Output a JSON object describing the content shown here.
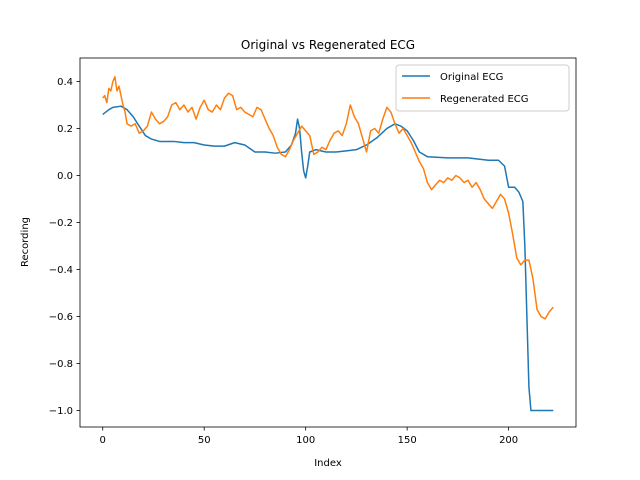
{
  "chart_data": {
    "type": "line",
    "title": "Original vs Regenerated ECG",
    "xlabel": "Index",
    "ylabel": "Recording",
    "xlim": [
      -11.2,
      233.2
    ],
    "ylim": [
      -1.07,
      0.5
    ],
    "x_ticks": [
      0,
      50,
      100,
      150,
      200
    ],
    "y_ticks": [
      -1.0,
      -0.8,
      -0.6,
      -0.4,
      -0.2,
      0.0,
      0.2,
      0.4
    ],
    "y_tick_labels": [
      "−1.0",
      "−0.8",
      "−0.6",
      "−0.4",
      "−0.2",
      "0.0",
      "0.2",
      "0.4"
    ],
    "grid": false,
    "legend_position": "top-right",
    "series": [
      {
        "name": "Original ECG",
        "color": "#1f77b4",
        "points": [
          [
            0,
            0.26
          ],
          [
            3,
            0.28
          ],
          [
            5,
            0.29
          ],
          [
            9,
            0.295
          ],
          [
            12,
            0.28
          ],
          [
            15,
            0.25
          ],
          [
            18,
            0.21
          ],
          [
            21,
            0.17
          ],
          [
            24,
            0.155
          ],
          [
            28,
            0.145
          ],
          [
            35,
            0.145
          ],
          [
            40,
            0.14
          ],
          [
            45,
            0.14
          ],
          [
            50,
            0.13
          ],
          [
            55,
            0.125
          ],
          [
            60,
            0.125
          ],
          [
            65,
            0.14
          ],
          [
            70,
            0.13
          ],
          [
            75,
            0.1
          ],
          [
            80,
            0.1
          ],
          [
            85,
            0.095
          ],
          [
            90,
            0.1
          ],
          [
            93,
            0.13
          ],
          [
            95,
            0.18
          ],
          [
            96,
            0.24
          ],
          [
            97,
            0.2
          ],
          [
            98,
            0.1
          ],
          [
            99,
            0.02
          ],
          [
            100,
            -0.01
          ],
          [
            101,
            0.04
          ],
          [
            102,
            0.1
          ],
          [
            105,
            0.11
          ],
          [
            110,
            0.1
          ],
          [
            115,
            0.1
          ],
          [
            120,
            0.105
          ],
          [
            125,
            0.11
          ],
          [
            130,
            0.13
          ],
          [
            135,
            0.16
          ],
          [
            140,
            0.2
          ],
          [
            144,
            0.22
          ],
          [
            147,
            0.21
          ],
          [
            150,
            0.19
          ],
          [
            153,
            0.15
          ],
          [
            156,
            0.1
          ],
          [
            160,
            0.08
          ],
          [
            170,
            0.075
          ],
          [
            180,
            0.075
          ],
          [
            190,
            0.065
          ],
          [
            195,
            0.065
          ],
          [
            198,
            0.04
          ],
          [
            200,
            -0.05
          ],
          [
            203,
            -0.05
          ],
          [
            205,
            -0.07
          ],
          [
            207,
            -0.11
          ],
          [
            208,
            -0.3
          ],
          [
            209,
            -0.6
          ],
          [
            210,
            -0.9
          ],
          [
            211,
            -1.0
          ],
          [
            215,
            -1.0
          ],
          [
            222,
            -1.0
          ]
        ]
      },
      {
        "name": "Regenerated ECG",
        "color": "#ff7f0e",
        "points": [
          [
            0,
            0.33
          ],
          [
            1,
            0.34
          ],
          [
            2,
            0.31
          ],
          [
            3,
            0.37
          ],
          [
            4,
            0.36
          ],
          [
            5,
            0.4
          ],
          [
            6,
            0.42
          ],
          [
            7,
            0.36
          ],
          [
            8,
            0.38
          ],
          [
            9,
            0.34
          ],
          [
            10,
            0.3
          ],
          [
            11,
            0.27
          ],
          [
            12,
            0.22
          ],
          [
            14,
            0.21
          ],
          [
            16,
            0.22
          ],
          [
            18,
            0.18
          ],
          [
            20,
            0.19
          ],
          [
            22,
            0.21
          ],
          [
            24,
            0.27
          ],
          [
            26,
            0.24
          ],
          [
            28,
            0.22
          ],
          [
            30,
            0.23
          ],
          [
            32,
            0.25
          ],
          [
            34,
            0.3
          ],
          [
            36,
            0.31
          ],
          [
            38,
            0.28
          ],
          [
            40,
            0.3
          ],
          [
            42,
            0.27
          ],
          [
            44,
            0.29
          ],
          [
            46,
            0.24
          ],
          [
            48,
            0.29
          ],
          [
            50,
            0.32
          ],
          [
            52,
            0.28
          ],
          [
            54,
            0.27
          ],
          [
            56,
            0.3
          ],
          [
            58,
            0.28
          ],
          [
            60,
            0.33
          ],
          [
            62,
            0.35
          ],
          [
            64,
            0.34
          ],
          [
            66,
            0.28
          ],
          [
            68,
            0.29
          ],
          [
            70,
            0.27
          ],
          [
            72,
            0.26
          ],
          [
            74,
            0.25
          ],
          [
            76,
            0.29
          ],
          [
            78,
            0.28
          ],
          [
            80,
            0.24
          ],
          [
            82,
            0.2
          ],
          [
            84,
            0.17
          ],
          [
            86,
            0.12
          ],
          [
            88,
            0.09
          ],
          [
            90,
            0.08
          ],
          [
            92,
            0.11
          ],
          [
            94,
            0.15
          ],
          [
            96,
            0.18
          ],
          [
            98,
            0.21
          ],
          [
            100,
            0.19
          ],
          [
            102,
            0.17
          ],
          [
            104,
            0.09
          ],
          [
            106,
            0.1
          ],
          [
            108,
            0.12
          ],
          [
            110,
            0.11
          ],
          [
            112,
            0.15
          ],
          [
            114,
            0.18
          ],
          [
            116,
            0.19
          ],
          [
            118,
            0.17
          ],
          [
            120,
            0.22
          ],
          [
            122,
            0.3
          ],
          [
            124,
            0.25
          ],
          [
            126,
            0.22
          ],
          [
            128,
            0.16
          ],
          [
            130,
            0.1
          ],
          [
            132,
            0.19
          ],
          [
            134,
            0.2
          ],
          [
            136,
            0.18
          ],
          [
            138,
            0.24
          ],
          [
            140,
            0.29
          ],
          [
            142,
            0.27
          ],
          [
            144,
            0.22
          ],
          [
            146,
            0.18
          ],
          [
            148,
            0.2
          ],
          [
            150,
            0.17
          ],
          [
            152,
            0.14
          ],
          [
            154,
            0.1
          ],
          [
            156,
            0.06
          ],
          [
            158,
            0.03
          ],
          [
            160,
            -0.03
          ],
          [
            162,
            -0.06
          ],
          [
            164,
            -0.04
          ],
          [
            166,
            -0.02
          ],
          [
            168,
            -0.03
          ],
          [
            170,
            -0.01
          ],
          [
            172,
            -0.02
          ],
          [
            174,
            0.0
          ],
          [
            176,
            -0.01
          ],
          [
            178,
            -0.03
          ],
          [
            180,
            -0.02
          ],
          [
            182,
            -0.05
          ],
          [
            184,
            -0.03
          ],
          [
            186,
            -0.06
          ],
          [
            188,
            -0.1
          ],
          [
            190,
            -0.12
          ],
          [
            192,
            -0.14
          ],
          [
            194,
            -0.11
          ],
          [
            196,
            -0.08
          ],
          [
            198,
            -0.1
          ],
          [
            200,
            -0.16
          ],
          [
            202,
            -0.25
          ],
          [
            204,
            -0.35
          ],
          [
            206,
            -0.38
          ],
          [
            208,
            -0.36
          ],
          [
            210,
            -0.36
          ],
          [
            212,
            -0.44
          ],
          [
            214,
            -0.57
          ],
          [
            216,
            -0.6
          ],
          [
            218,
            -0.61
          ],
          [
            220,
            -0.58
          ],
          [
            222,
            -0.56
          ]
        ]
      }
    ]
  }
}
